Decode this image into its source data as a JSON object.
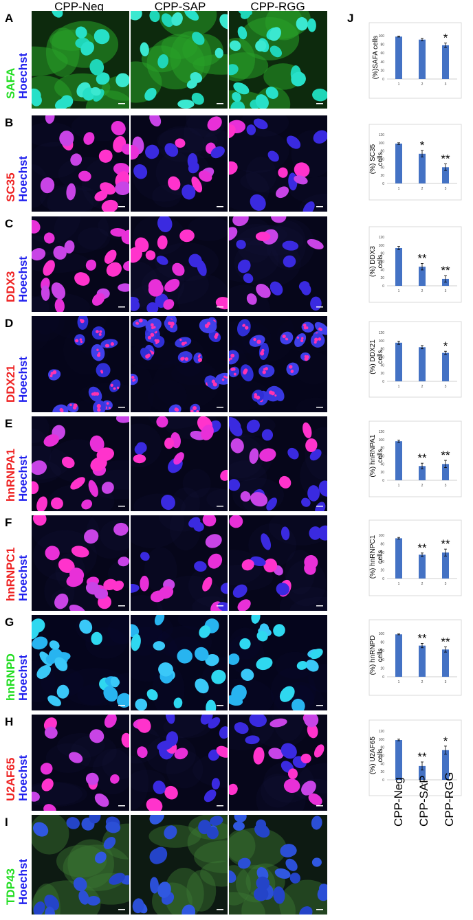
{
  "columns": [
    "CPP-Neg",
    "CPP-SAP",
    "CPP-RGG"
  ],
  "panel_j_letter": "J",
  "rows": [
    {
      "letter": "A",
      "stain": "SAFA",
      "stain_color": "#22dd22",
      "counter": "Hoechst",
      "counter_color": "#2222ee",
      "style": "green"
    },
    {
      "letter": "B",
      "stain": "SC35",
      "stain_color": "#ee2222",
      "counter": "Hoechst",
      "counter_color": "#2222ee",
      "style": "magenta"
    },
    {
      "letter": "C",
      "stain": "DDX3",
      "stain_color": "#ee2222",
      "counter": "Hoechst",
      "counter_color": "#2222ee",
      "style": "magenta"
    },
    {
      "letter": "D",
      "stain": "DDX21",
      "stain_color": "#ee2222",
      "counter": "Hoechst",
      "counter_color": "#2222ee",
      "style": "spots"
    },
    {
      "letter": "E",
      "stain": "hnRNPA1",
      "stain_color": "#ee2222",
      "counter": "Hoechst",
      "counter_color": "#2222ee",
      "style": "magenta"
    },
    {
      "letter": "F",
      "stain": "hnRNPC1",
      "stain_color": "#ee2222",
      "counter": "Hoechst",
      "counter_color": "#2222ee",
      "style": "magenta"
    },
    {
      "letter": "G",
      "stain": "hnRNPD",
      "stain_color": "#22dd22",
      "counter": "Hoechst",
      "counter_color": "#2222ee",
      "style": "cyan"
    },
    {
      "letter": "H",
      "stain": "U2AF65",
      "stain_color": "#ee2222",
      "counter": "Hoechst",
      "counter_color": "#2222ee",
      "style": "magenta"
    },
    {
      "letter": "I",
      "stain": "TDP43",
      "stain_color": "#22dd22",
      "counter": "Hoechst",
      "counter_color": "#2222ee",
      "style": "blue"
    }
  ],
  "bar_color": "#4472c4",
  "chart_data": [
    {
      "type": "bar",
      "ylabel": "(%)SAFA cells",
      "categories": [
        "1",
        "2",
        "3"
      ],
      "values": [
        98,
        91,
        78
      ],
      "errors": [
        1,
        3,
        5
      ],
      "significance": [
        "",
        "",
        "*"
      ],
      "ylim": [
        0,
        100
      ],
      "yticks": [
        0,
        20,
        40,
        60,
        80,
        100
      ]
    },
    {
      "type": "bar",
      "ylabel": "(%) SC35 cells",
      "categories": [
        "1",
        "2",
        "3"
      ],
      "values": [
        98,
        73,
        40
      ],
      "errors": [
        2,
        8,
        8
      ],
      "significance": [
        "",
        "*",
        "**"
      ],
      "ylim": [
        0,
        120
      ],
      "yticks": [
        0,
        20,
        40,
        60,
        80,
        100,
        120
      ]
    },
    {
      "type": "bar",
      "ylabel": "(%) DDX3 cells",
      "categories": [
        "1",
        "2",
        "3"
      ],
      "values": [
        93,
        47,
        17
      ],
      "errors": [
        4,
        8,
        8
      ],
      "significance": [
        "",
        "**",
        "**"
      ],
      "ylim": [
        0,
        120
      ],
      "yticks": [
        0,
        20,
        40,
        60,
        80,
        100,
        120
      ]
    },
    {
      "type": "bar",
      "ylabel": "(%) DDX21 cells",
      "categories": [
        "1",
        "2",
        "3"
      ],
      "values": [
        95,
        84,
        70
      ],
      "errors": [
        4,
        4,
        4
      ],
      "significance": [
        "",
        "",
        "*"
      ],
      "ylim": [
        0,
        120
      ],
      "yticks": [
        0,
        20,
        40,
        60,
        80,
        100,
        120
      ]
    },
    {
      "type": "bar",
      "ylabel": "(%) hnRNPA1 cells",
      "categories": [
        "1",
        "2",
        "3"
      ],
      "values": [
        96,
        35,
        40
      ],
      "errors": [
        3,
        7,
        9
      ],
      "significance": [
        "",
        "**",
        "**"
      ],
      "ylim": [
        0,
        120
      ],
      "yticks": [
        0,
        20,
        40,
        60,
        80,
        100,
        120
      ]
    },
    {
      "type": "bar",
      "ylabel": "(%) hnRNPC1 cells",
      "categories": [
        "1",
        "2",
        "3"
      ],
      "values": [
        93,
        55,
        60
      ],
      "errors": [
        2,
        4,
        8
      ],
      "significance": [
        "",
        "**",
        "**"
      ],
      "ylim": [
        0,
        100
      ],
      "yticks": [
        0,
        20,
        40,
        60,
        80,
        100
      ]
    },
    {
      "type": "bar",
      "ylabel": "(%) hnRNPD cells",
      "categories": [
        "1",
        "2",
        "3"
      ],
      "values": [
        98,
        72,
        63
      ],
      "errors": [
        1,
        5,
        6
      ],
      "significance": [
        "",
        "**",
        "**"
      ],
      "ylim": [
        0,
        100
      ],
      "yticks": [
        0,
        20,
        40,
        60,
        80,
        100
      ]
    },
    {
      "type": "bar",
      "ylabel": "(%) U2AF65 cells",
      "categories": [
        "1",
        "2",
        "3"
      ],
      "values": [
        98,
        34,
        73
      ],
      "errors": [
        2,
        10,
        10
      ],
      "significance": [
        "",
        "**",
        "*"
      ],
      "ylim": [
        0,
        120
      ],
      "yticks": [
        0,
        20,
        40,
        60,
        80,
        100,
        120
      ]
    }
  ]
}
